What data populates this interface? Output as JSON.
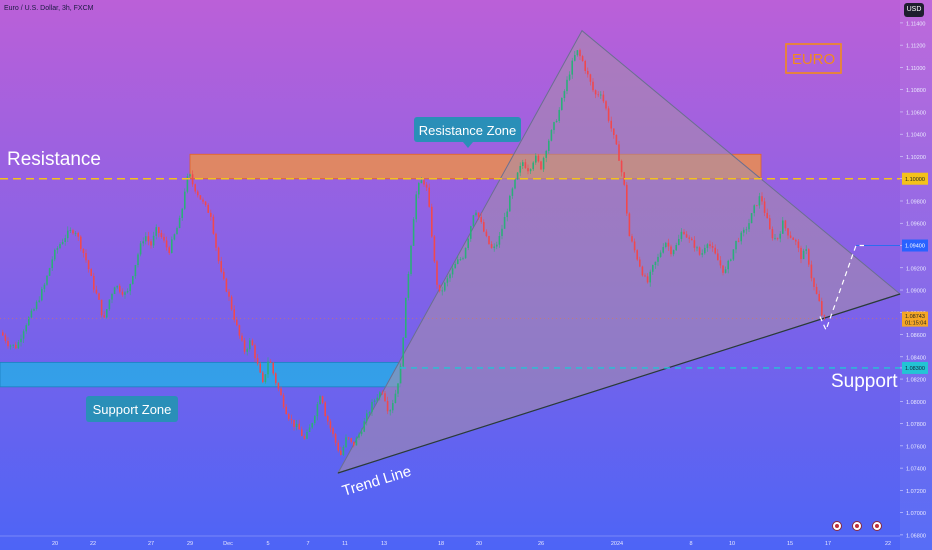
{
  "header": {
    "title": "Euro / U.S. Dollar, 3h, FXCM",
    "currency_button": "USD"
  },
  "annotations": {
    "euro_badge": "EURO",
    "resistance_label": "Resistance",
    "resistance_zone_label": "Resistance Zone",
    "support_zone_label": "Support Zone",
    "support_label": "Support",
    "trend_line_label": "Trend Line"
  },
  "price_tags": {
    "resistance_level": "1.10000",
    "target_level": "1.09400",
    "current_price": "1.08743",
    "countdown": "01:15:04",
    "support_level": "1.08300"
  },
  "colors": {
    "bg_top": "#bb60d8",
    "bg_bottom": "#4d64f6",
    "candle_up": "#2bae7a",
    "candle_down": "#f0484e",
    "resistance_zone": "#f29240",
    "support_zone": "#2ea5e8",
    "resistance_line": "#f4c21a",
    "support_line": "#23c4d4",
    "trend_line": "#2a3a3a",
    "label_bg": "#2a8fb8",
    "euro_badge": "#f28a1c"
  },
  "chart_data": {
    "type": "candlestick",
    "instrument": "Euro / U.S. Dollar",
    "timeframe": "3h",
    "source": "FXCM",
    "y_ticks": [
      "1.11400",
      "1.11200",
      "1.11000",
      "1.10800",
      "1.10600",
      "1.10400",
      "1.10200",
      "1.10000",
      "1.09800",
      "1.09600",
      "1.09400",
      "1.09200",
      "1.09000",
      "1.08800",
      "1.08600",
      "1.08400",
      "1.08300",
      "1.08200",
      "1.08000",
      "1.07800",
      "1.07600",
      "1.07400",
      "1.07200",
      "1.07000",
      "1.06800"
    ],
    "ylim": [
      1.0679,
      1.1148
    ],
    "x_ticks": [
      "20",
      "22",
      "27",
      "29",
      "Dec",
      "5",
      "7",
      "11",
      "13",
      "18",
      "20",
      "26",
      "2024",
      "8",
      "10",
      "15",
      "17",
      "22"
    ],
    "close_path": [
      [
        0,
        1.0862
      ],
      [
        8,
        1.0851
      ],
      [
        16,
        1.0849
      ],
      [
        24,
        1.0868
      ],
      [
        34,
        1.0884
      ],
      [
        44,
        1.0905
      ],
      [
        52,
        1.093
      ],
      [
        58,
        1.094
      ],
      [
        66,
        1.095
      ],
      [
        74,
        1.0955
      ],
      [
        80,
        1.094
      ],
      [
        86,
        1.0925
      ],
      [
        92,
        1.0905
      ],
      [
        98,
        1.089
      ],
      [
        103,
        1.0872
      ],
      [
        108,
        1.089
      ],
      [
        114,
        1.0905
      ],
      [
        120,
        1.09
      ],
      [
        126,
        1.0895
      ],
      [
        132,
        1.0915
      ],
      [
        138,
        1.0935
      ],
      [
        144,
        1.095
      ],
      [
        150,
        1.094
      ],
      [
        156,
        1.0955
      ],
      [
        162,
        1.0945
      ],
      [
        168,
        1.0935
      ],
      [
        174,
        1.095
      ],
      [
        180,
        1.0965
      ],
      [
        184,
        1.099
      ],
      [
        188,
        1.1005
      ],
      [
        192,
        1.0995
      ],
      [
        198,
        1.0985
      ],
      [
        204,
        1.0975
      ],
      [
        210,
        1.0968
      ],
      [
        215,
        1.094
      ],
      [
        220,
        1.0915
      ],
      [
        226,
        1.09
      ],
      [
        232,
        1.088
      ],
      [
        238,
        1.086
      ],
      [
        244,
        1.0845
      ],
      [
        250,
        1.0855
      ],
      [
        256,
        1.0835
      ],
      [
        262,
        1.0815
      ],
      [
        268,
        1.084
      ],
      [
        274,
        1.082
      ],
      [
        280,
        1.0805
      ],
      [
        286,
        1.079
      ],
      [
        292,
        1.078
      ],
      [
        298,
        1.0775
      ],
      [
        304,
        1.0765
      ],
      [
        310,
        1.0778
      ],
      [
        316,
        1.0795
      ],
      [
        320,
        1.081
      ],
      [
        324,
        1.079
      ],
      [
        330,
        1.0775
      ],
      [
        336,
        1.076
      ],
      [
        340,
        1.0752
      ],
      [
        346,
        1.0768
      ],
      [
        352,
        1.076
      ],
      [
        358,
        1.077
      ],
      [
        364,
        1.0782
      ],
      [
        370,
        1.0795
      ],
      [
        376,
        1.0805
      ],
      [
        382,
        1.081
      ],
      [
        388,
        1.079
      ],
      [
        394,
        1.0805
      ],
      [
        400,
        1.083
      ],
      [
        404,
        1.088
      ],
      [
        408,
        1.092
      ],
      [
        412,
        1.096
      ],
      [
        416,
        1.099
      ],
      [
        422,
        1.1
      ],
      [
        426,
        1.099
      ],
      [
        430,
        1.096
      ],
      [
        434,
        1.092
      ],
      [
        438,
        1.0895
      ],
      [
        444,
        1.0905
      ],
      [
        450,
        1.0915
      ],
      [
        456,
        1.0925
      ],
      [
        462,
        1.093
      ],
      [
        468,
        1.095
      ],
      [
        474,
        1.0975
      ],
      [
        480,
        1.096
      ],
      [
        486,
        1.0945
      ],
      [
        492,
        1.0935
      ],
      [
        498,
        1.0945
      ],
      [
        504,
        1.0965
      ],
      [
        510,
        1.0985
      ],
      [
        516,
        1.1002
      ],
      [
        522,
        1.1015
      ],
      [
        528,
        1.1008
      ],
      [
        534,
        1.102
      ],
      [
        540,
        1.101
      ],
      [
        546,
        1.103
      ],
      [
        552,
        1.1045
      ],
      [
        558,
        1.106
      ],
      [
        564,
        1.108
      ],
      [
        570,
        1.11
      ],
      [
        576,
        1.1115
      ],
      [
        582,
        1.1105
      ],
      [
        588,
        1.109
      ],
      [
        594,
        1.1075
      ],
      [
        600,
        1.1078
      ],
      [
        606,
        1.106
      ],
      [
        612,
        1.104
      ],
      [
        618,
        1.102
      ],
      [
        624,
        1.099
      ],
      [
        628,
        1.095
      ],
      [
        634,
        1.0935
      ],
      [
        640,
        1.092
      ],
      [
        646,
        1.0905
      ],
      [
        652,
        1.092
      ],
      [
        658,
        1.093
      ],
      [
        664,
        1.0945
      ],
      [
        670,
        1.0935
      ],
      [
        676,
        1.094
      ],
      [
        682,
        1.0955
      ],
      [
        688,
        1.0945
      ],
      [
        694,
        1.094
      ],
      [
        700,
        1.093
      ],
      [
        706,
        1.0945
      ],
      [
        712,
        1.0935
      ],
      [
        718,
        1.0925
      ],
      [
        724,
        1.0915
      ],
      [
        730,
        1.093
      ],
      [
        736,
        1.0945
      ],
      [
        742,
        1.095
      ],
      [
        748,
        1.096
      ],
      [
        754,
        1.0975
      ],
      [
        760,
        1.0985
      ],
      [
        764,
        1.097
      ],
      [
        770,
        1.095
      ],
      [
        776,
        1.0945
      ],
      [
        782,
        1.096
      ],
      [
        788,
        1.095
      ],
      [
        794,
        1.0945
      ],
      [
        800,
        1.093
      ],
      [
        806,
        1.0935
      ],
      [
        812,
        1.0905
      ],
      [
        818,
        1.089
      ],
      [
        822,
        1.0874
      ]
    ],
    "levels": {
      "resistance": 1.1,
      "support": 1.083,
      "target": 1.094,
      "current": 1.08743
    },
    "resistance_zone": [
      1.1,
      1.1022
    ],
    "support_zone": [
      1.0813,
      1.0835
    ]
  }
}
